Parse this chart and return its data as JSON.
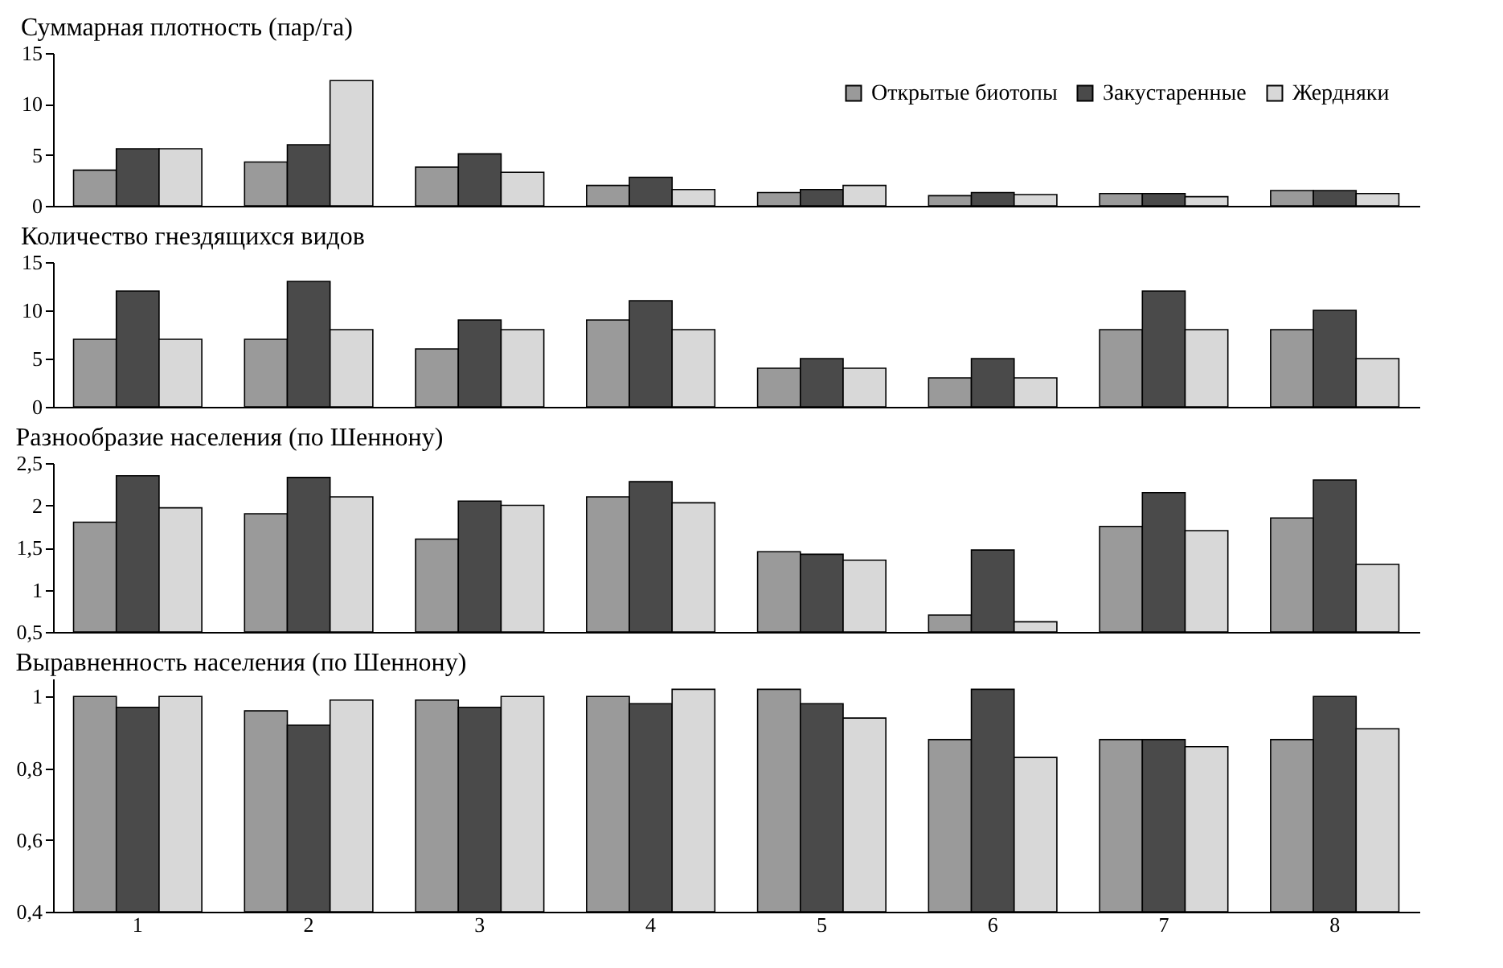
{
  "chart_data": [
    {
      "type": "bar",
      "title": "Суммарная плотность (пар/га)",
      "categories": [
        "1",
        "2",
        "3",
        "4",
        "5",
        "6",
        "7",
        "8"
      ],
      "ylim": [
        0,
        15
      ],
      "yticks": [
        0,
        5,
        10,
        15
      ],
      "tick_labels": "y",
      "legend": "top right",
      "series": [
        {
          "name": "Открытые биотопы",
          "color": "#9a9a9a",
          "values": [
            3.5,
            4.3,
            3.8,
            2,
            1.3,
            1,
            1.2,
            1.5
          ]
        },
        {
          "name": "Закустаренные",
          "color": "#4a4a4a",
          "values": [
            5.6,
            6,
            5.1,
            2.8,
            1.6,
            1.3,
            1.2,
            1.5
          ]
        },
        {
          "name": "Жердняки",
          "color": "#d8d8d8",
          "values": [
            5.6,
            12.3,
            3.3,
            1.6,
            2,
            1.1,
            0.9,
            1.2
          ]
        }
      ]
    },
    {
      "type": "bar",
      "title": "Количество гнездящихся видов",
      "categories": [
        "1",
        "2",
        "3",
        "4",
        "5",
        "6",
        "7",
        "8"
      ],
      "ylim": [
        0,
        15
      ],
      "yticks": [
        0,
        5,
        10,
        15
      ],
      "tick_labels": "y",
      "series": [
        {
          "color": "#9a9a9a",
          "values": [
            7,
            7,
            6,
            9,
            4,
            3,
            8,
            8
          ]
        },
        {
          "color": "#4a4a4a",
          "values": [
            12,
            13,
            9,
            11,
            5,
            5,
            12,
            10
          ]
        },
        {
          "color": "#d8d8d8",
          "values": [
            7,
            8,
            8,
            8,
            4,
            3,
            8,
            5
          ]
        }
      ]
    },
    {
      "type": "bar",
      "title": "Разнообразие населения (по Шеннону)",
      "categories": [
        "1",
        "2",
        "3",
        "4",
        "5",
        "6",
        "7",
        "8"
      ],
      "ylim": [
        0.5,
        2.5
      ],
      "yticks": [
        {
          "value": 0.5,
          "label": "0,5"
        },
        {
          "value": 1,
          "label": "1"
        },
        {
          "value": 1.5,
          "label": "1,5"
        },
        {
          "value": 2,
          "label": "2"
        },
        {
          "value": 2.5,
          "label": "2,5"
        }
      ],
      "tick_labels": "y",
      "series": [
        {
          "color": "#9a9a9a",
          "values": [
            1.8,
            1.9,
            1.6,
            2.1,
            1.45,
            0.7,
            1.75,
            1.85
          ]
        },
        {
          "color": "#4a4a4a",
          "values": [
            2.35,
            2.33,
            2.05,
            2.28,
            1.42,
            1.47,
            2.15,
            2.3
          ]
        },
        {
          "color": "#d8d8d8",
          "values": [
            1.97,
            2.1,
            2,
            2.03,
            1.35,
            0.62,
            1.7,
            1.3
          ]
        }
      ]
    },
    {
      "type": "bar",
      "title": "Выравненность населения (по Шеннону)",
      "categories": [
        "1",
        "2",
        "3",
        "4",
        "5",
        "6",
        "7",
        "8"
      ],
      "ylim": [
        0.4,
        1.05
      ],
      "yticks": [
        {
          "value": 0.4,
          "label": "0,4"
        },
        {
          "value": 0.6,
          "label": "0,6"
        },
        {
          "value": 0.8,
          "label": "0,8"
        },
        {
          "value": 1,
          "label": "1"
        }
      ],
      "series": [
        {
          "color": "#9a9a9a",
          "values": [
            1,
            0.96,
            0.99,
            1,
            1.02,
            0.88,
            0.88,
            0.88
          ]
        },
        {
          "color": "#4a4a4a",
          "values": [
            0.97,
            0.92,
            0.97,
            0.98,
            0.98,
            1.02,
            0.88,
            1
          ]
        },
        {
          "color": "#d8d8d8",
          "values": [
            1,
            0.99,
            1,
            1.02,
            0.94,
            0.83,
            0.86,
            0.91
          ]
        }
      ]
    }
  ]
}
